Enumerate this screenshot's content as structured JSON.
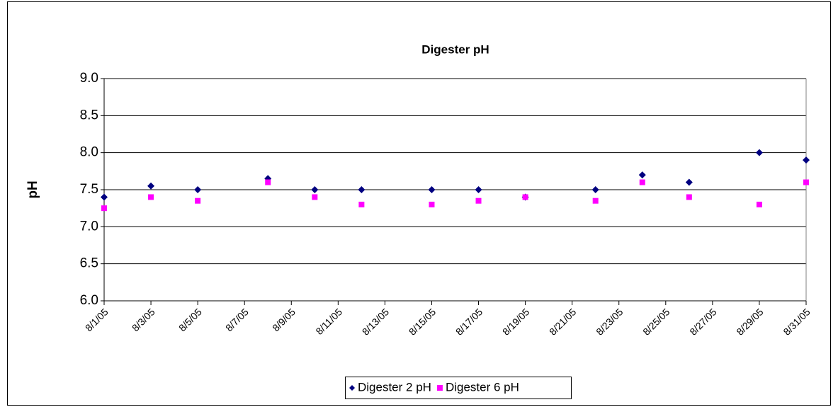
{
  "chart_data": {
    "type": "scatter",
    "title": "Digester pH",
    "ylabel": "pH",
    "x": [
      "8/1/05",
      "8/3/05",
      "8/5/05",
      "8/8/05",
      "8/10/05",
      "8/12/05",
      "8/15/05",
      "8/17/05",
      "8/19/05",
      "8/22/05",
      "8/24/05",
      "8/26/05",
      "8/29/05",
      "8/31/05"
    ],
    "series": [
      {
        "name": "Digester 2 pH",
        "color": "#000080",
        "marker": "diamond",
        "values": [
          7.4,
          7.55,
          7.5,
          7.65,
          7.5,
          7.5,
          7.5,
          7.5,
          7.4,
          7.5,
          7.7,
          7.6,
          8.0,
          7.9
        ]
      },
      {
        "name": "Digester 6 pH",
        "color": "#ff00ff",
        "marker": "square",
        "values": [
          7.25,
          7.4,
          7.35,
          7.6,
          7.4,
          7.3,
          7.3,
          7.35,
          7.4,
          7.35,
          7.6,
          7.4,
          7.3,
          7.6
        ]
      }
    ],
    "xlim": [
      "8/1/05",
      "8/31/05"
    ],
    "xticks": [
      "8/1/05",
      "8/3/05",
      "8/5/05",
      "8/7/05",
      "8/9/05",
      "8/11/05",
      "8/13/05",
      "8/15/05",
      "8/17/05",
      "8/19/05",
      "8/21/05",
      "8/23/05",
      "8/25/05",
      "8/27/05",
      "8/29/05",
      "8/31/05"
    ],
    "ylim": [
      6,
      9
    ],
    "yticks": [
      {
        "value": 6,
        "label": "6.0"
      },
      6.5,
      {
        "value": 7,
        "label": "7.0"
      },
      7.5,
      {
        "value": 8,
        "label": "8.0"
      },
      8.5,
      {
        "value": 9,
        "label": "9.0"
      }
    ],
    "grid": true,
    "legend": "bottom"
  }
}
